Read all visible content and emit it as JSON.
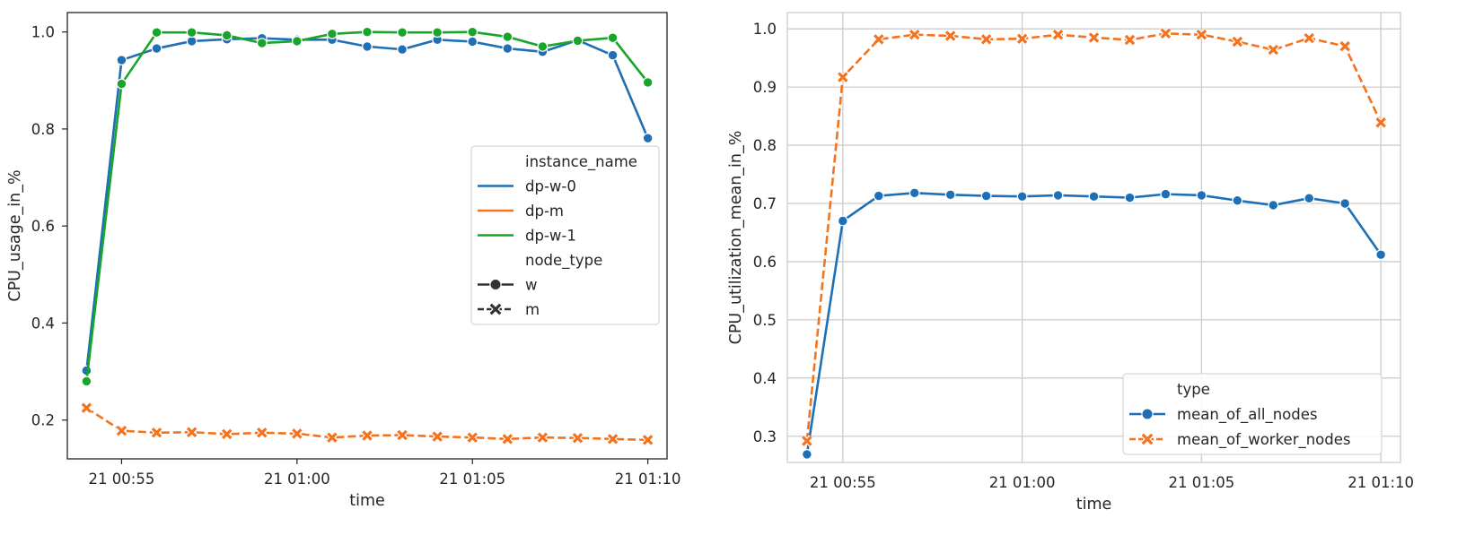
{
  "chart_data": [
    {
      "type": "line",
      "title": "",
      "xlabel": "time",
      "ylabel": "CPU_usage_in_%",
      "x": [
        "00:54",
        "00:55",
        "00:56",
        "00:57",
        "00:58",
        "00:59",
        "01:00",
        "01:01",
        "01:02",
        "01:03",
        "01:04",
        "01:05",
        "01:06",
        "01:07",
        "01:08",
        "01:09",
        "01:10"
      ],
      "xticks": [
        {
          "at": "00:55",
          "label": "21 00:55"
        },
        {
          "at": "01:00",
          "label": "21 01:00"
        },
        {
          "at": "01:05",
          "label": "21 01:05"
        },
        {
          "at": "01:10",
          "label": "21 01:10"
        }
      ],
      "ylim": [
        0.12,
        1.04
      ],
      "yticks": [
        0.2,
        0.4,
        0.6,
        0.8,
        1.0
      ],
      "ytick_labels": [
        "0.2",
        "0.4",
        "0.6",
        "0.8",
        "1.0"
      ],
      "grid": false,
      "series": [
        {
          "name": "dp-w-0",
          "color": "#1f6fb5",
          "marker": "circle",
          "dash": false,
          "values": [
            0.302,
            0.942,
            0.966,
            0.981,
            0.985,
            0.987,
            0.984,
            0.984,
            0.97,
            0.964,
            0.984,
            0.98,
            0.966,
            0.959,
            0.983,
            0.952,
            0.781
          ]
        },
        {
          "name": "dp-m",
          "color": "#f4731f",
          "marker": "x",
          "dash": true,
          "values": [
            0.225,
            0.178,
            0.174,
            0.175,
            0.171,
            0.174,
            0.172,
            0.164,
            0.168,
            0.169,
            0.166,
            0.164,
            0.161,
            0.164,
            0.163,
            0.161,
            0.159
          ]
        },
        {
          "name": "dp-w-1",
          "color": "#17a52a",
          "marker": "circle",
          "dash": false,
          "values": [
            0.28,
            0.893,
            0.999,
            0.999,
            0.993,
            0.977,
            0.981,
            0.996,
            1.0,
            0.999,
            0.999,
            1.0,
            0.99,
            0.97,
            0.982,
            0.988,
            0.896
          ]
        }
      ],
      "legend": {
        "placement": "center-right",
        "entries": [
          {
            "kind": "header",
            "label": "instance_name"
          },
          {
            "kind": "line",
            "label": "dp-w-0",
            "color": "#1f6fb5"
          },
          {
            "kind": "line",
            "label": "dp-m",
            "color": "#f4731f"
          },
          {
            "kind": "line",
            "label": "dp-w-1",
            "color": "#17a52a"
          },
          {
            "kind": "header",
            "label": "node_type"
          },
          {
            "kind": "style",
            "label": "w",
            "marker": "circle",
            "dash": false,
            "color": "#333333"
          },
          {
            "kind": "style",
            "label": "m",
            "marker": "x",
            "dash": true,
            "color": "#333333"
          }
        ]
      }
    },
    {
      "type": "line",
      "title": "",
      "xlabel": "time",
      "ylabel": "CPU_utilization_mean_in_%",
      "x": [
        "00:54",
        "00:55",
        "00:56",
        "00:57",
        "00:58",
        "00:59",
        "01:00",
        "01:01",
        "01:02",
        "01:03",
        "01:04",
        "01:05",
        "01:06",
        "01:07",
        "01:08",
        "01:09",
        "01:10"
      ],
      "xticks": [
        {
          "at": "00:55",
          "label": "21 00:55"
        },
        {
          "at": "01:00",
          "label": "21 01:00"
        },
        {
          "at": "01:05",
          "label": "21 01:05"
        },
        {
          "at": "01:10",
          "label": "21 01:10"
        }
      ],
      "ylim": [
        0.255,
        1.028
      ],
      "yticks": [
        0.3,
        0.4,
        0.5,
        0.6,
        0.7,
        0.8,
        0.9,
        1.0
      ],
      "ytick_labels": [
        "0.3",
        "0.4",
        "0.5",
        "0.6",
        "0.7",
        "0.8",
        "0.9",
        "1.0"
      ],
      "grid": true,
      "series": [
        {
          "name": "mean_of_all_nodes",
          "color": "#1f6fb5",
          "marker": "circle",
          "dash": false,
          "values": [
            0.269,
            0.67,
            0.713,
            0.718,
            0.715,
            0.713,
            0.712,
            0.714,
            0.712,
            0.71,
            0.716,
            0.714,
            0.705,
            0.697,
            0.709,
            0.7,
            0.612
          ]
        },
        {
          "name": "mean_of_worker_nodes",
          "color": "#f4731f",
          "marker": "x",
          "dash": true,
          "values": [
            0.292,
            0.917,
            0.982,
            0.99,
            0.988,
            0.982,
            0.983,
            0.99,
            0.985,
            0.981,
            0.992,
            0.99,
            0.978,
            0.964,
            0.984,
            0.97,
            0.839
          ]
        }
      ],
      "legend": {
        "placement": "bottom-right",
        "entries": [
          {
            "kind": "header",
            "label": "type"
          },
          {
            "kind": "series",
            "label": "mean_of_all_nodes",
            "marker": "circle",
            "dash": false,
            "color": "#1f6fb5"
          },
          {
            "kind": "series",
            "label": "mean_of_worker_nodes",
            "marker": "x",
            "dash": true,
            "color": "#f4731f"
          }
        ]
      }
    }
  ]
}
